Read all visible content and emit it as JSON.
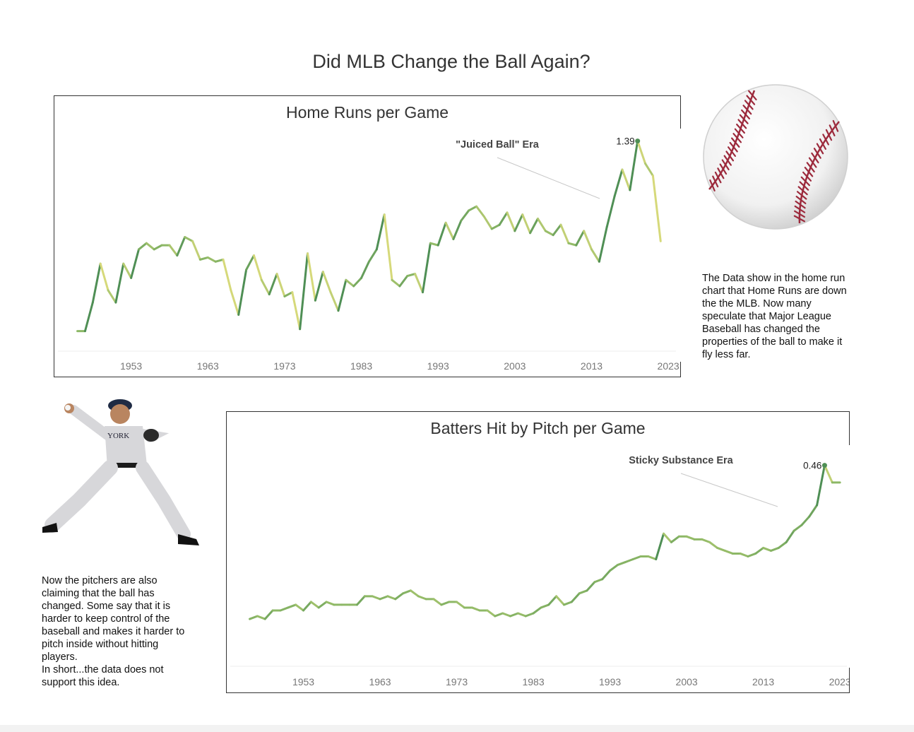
{
  "page": {
    "title": "Did MLB Change the Ball Again?",
    "home_runs_note": "The Data show in the home run\nchart that Home Runs are down\nthe the MLB. Now many\nspeculate that Major League\nBaseball has changed the\nproperties of the ball to make it\nfly less far.",
    "pitchers_note": "Now the pitchers are also\nclaiming that the ball has\nchanged. Some say that it is\nharder to keep control of the\nbaseball and makes it harder to\npitch inside without hitting\nplayers.\nIn short...the data does not\nsupport this idea."
  },
  "colors": {
    "line_dark": "#4f8f55",
    "line_mid": "#8db866",
    "line_light": "#d6d97a",
    "baseball_stitch": "#9c2a3c"
  },
  "chart_data": [
    {
      "type": "line",
      "title": "Home Runs per Game",
      "x_ticks": [
        "1953",
        "1963",
        "1973",
        "1983",
        "1993",
        "2003",
        "2013",
        "2023"
      ],
      "xlim": [
        1943,
        2024
      ],
      "ylim": [
        0.4,
        1.43
      ],
      "annotation_label": "\"Juiced Ball\" Era",
      "peak_label": "1.39",
      "peak_x": 2019,
      "peak_y": 1.39,
      "x": [
        1946,
        1947,
        1948,
        1949,
        1950,
        1951,
        1952,
        1953,
        1954,
        1955,
        1956,
        1957,
        1958,
        1959,
        1960,
        1961,
        1962,
        1963,
        1964,
        1965,
        1966,
        1967,
        1968,
        1969,
        1970,
        1971,
        1972,
        1973,
        1974,
        1975,
        1976,
        1977,
        1978,
        1979,
        1980,
        1981,
        1982,
        1983,
        1984,
        1985,
        1986,
        1987,
        1988,
        1989,
        1990,
        1991,
        1992,
        1993,
        1994,
        1995,
        1996,
        1997,
        1998,
        1999,
        2000,
        2001,
        2002,
        2003,
        2004,
        2005,
        2006,
        2007,
        2008,
        2009,
        2010,
        2011,
        2012,
        2013,
        2014,
        2015,
        2016,
        2017,
        2018,
        2019,
        2020,
        2021,
        2022
      ],
      "y": [
        0.46,
        0.46,
        0.6,
        0.79,
        0.66,
        0.6,
        0.79,
        0.72,
        0.86,
        0.89,
        0.86,
        0.88,
        0.88,
        0.83,
        0.92,
        0.9,
        0.81,
        0.82,
        0.8,
        0.81,
        0.66,
        0.54,
        0.76,
        0.83,
        0.71,
        0.64,
        0.74,
        0.63,
        0.65,
        0.47,
        0.84,
        0.61,
        0.75,
        0.65,
        0.56,
        0.71,
        0.68,
        0.72,
        0.8,
        0.86,
        1.03,
        0.71,
        0.68,
        0.73,
        0.74,
        0.65,
        0.89,
        0.88,
        0.99,
        0.91,
        1.0,
        1.05,
        1.07,
        1.02,
        0.96,
        0.98,
        1.04,
        0.95,
        1.03,
        0.94,
        1.01,
        0.95,
        0.93,
        0.98,
        0.89,
        0.88,
        0.95,
        0.86,
        0.8,
        0.97,
        1.12,
        1.25,
        1.15,
        1.39,
        1.28,
        1.22,
        0.9
      ]
    },
    {
      "type": "line",
      "title": "Batters Hit by Pitch per Game",
      "x_ticks": [
        "1953",
        "1963",
        "1973",
        "1983",
        "1993",
        "2003",
        "2013",
        "2023"
      ],
      "xlim": [
        1943,
        2024
      ],
      "ylim": [
        0.123,
        0.472
      ],
      "annotation_label": "Sticky Substance Era",
      "peak_label": "0.46",
      "peak_x": 2021,
      "peak_y": 0.46,
      "x": [
        1946,
        1947,
        1948,
        1949,
        1950,
        1951,
        1952,
        1953,
        1954,
        1955,
        1956,
        1957,
        1958,
        1959,
        1960,
        1961,
        1962,
        1963,
        1964,
        1965,
        1966,
        1967,
        1968,
        1969,
        1970,
        1971,
        1972,
        1973,
        1974,
        1975,
        1976,
        1977,
        1978,
        1979,
        1980,
        1981,
        1982,
        1983,
        1984,
        1985,
        1986,
        1987,
        1988,
        1989,
        1990,
        1991,
        1992,
        1993,
        1994,
        1995,
        1996,
        1997,
        1998,
        1999,
        2000,
        2001,
        2002,
        2003,
        2004,
        2005,
        2006,
        2007,
        2008,
        2009,
        2010,
        2011,
        2012,
        2013,
        2014,
        2015,
        2016,
        2017,
        2018,
        2019,
        2020,
        2021,
        2022,
        2023
      ],
      "y": [
        0.19,
        0.195,
        0.19,
        0.205,
        0.205,
        0.21,
        0.215,
        0.205,
        0.22,
        0.21,
        0.22,
        0.215,
        0.215,
        0.215,
        0.215,
        0.23,
        0.23,
        0.225,
        0.23,
        0.225,
        0.235,
        0.24,
        0.23,
        0.225,
        0.225,
        0.215,
        0.22,
        0.22,
        0.21,
        0.21,
        0.205,
        0.205,
        0.195,
        0.2,
        0.195,
        0.2,
        0.195,
        0.2,
        0.21,
        0.215,
        0.23,
        0.215,
        0.22,
        0.235,
        0.24,
        0.255,
        0.26,
        0.275,
        0.285,
        0.29,
        0.295,
        0.3,
        0.3,
        0.295,
        0.34,
        0.325,
        0.335,
        0.335,
        0.33,
        0.33,
        0.325,
        0.315,
        0.31,
        0.305,
        0.305,
        0.3,
        0.305,
        0.315,
        0.31,
        0.315,
        0.325,
        0.345,
        0.355,
        0.37,
        0.39,
        0.46,
        0.43,
        0.43
      ]
    }
  ]
}
